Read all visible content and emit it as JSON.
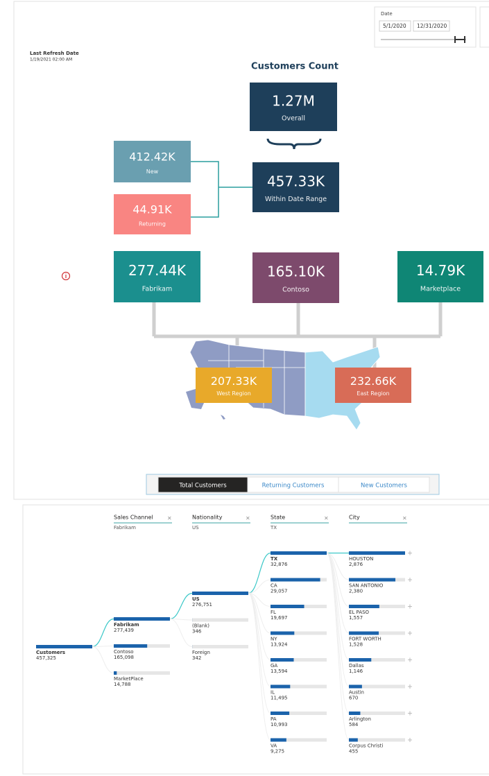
{
  "slicer": {
    "label": "Date",
    "start": "5/1/2020",
    "end": "12/31/2020"
  },
  "refresh": {
    "label": "Last Refresh Date",
    "value": "1/19/2021 02:00 AM"
  },
  "title": "Customers Count",
  "cards": [
    {
      "value": "1.27M",
      "label": "Overall",
      "color": "#1e3f5a"
    },
    {
      "value": "457.33K",
      "label": "Within Date Range",
      "color": "#1e3f5a"
    },
    {
      "value": "412.42K",
      "label": "New",
      "color": "#6a9fb0"
    },
    {
      "value": "44.91K",
      "label": "Returning",
      "color": "#f98582"
    },
    {
      "value": "277.44K",
      "label": "Fabrikam",
      "color": "#1b8f8e"
    },
    {
      "value": "165.10K",
      "label": "Contoso",
      "color": "#7d4a6c"
    },
    {
      "value": "14.79K",
      "label": "Marketplace",
      "color": "#0f8675"
    },
    {
      "value": "207.33K",
      "label": "West Region",
      "color": "#e8a92a"
    },
    {
      "value": "232.66K",
      "label": "East Region",
      "color": "#d86c57"
    }
  ],
  "tabs": [
    "Total Customers",
    "Returning Customers",
    "New Customers"
  ],
  "tree": {
    "root": {
      "name": "Customers",
      "count": {
        "value": 457325,
        "label": "457,325"
      }
    },
    "levels": [
      {
        "field": "Sales Channel",
        "filter": "Fabrikam",
        "items": [
          {
            "name": "Fabrikam",
            "count": {
              "value": 277439,
              "label": "277,439"
            }
          },
          {
            "name": "Contoso",
            "count": {
              "value": 165098,
              "label": "165,098"
            }
          },
          {
            "name": "MarketPlace",
            "count": {
              "value": 14788,
              "label": "14,788"
            }
          }
        ]
      },
      {
        "field": "Nationality",
        "filter": "US",
        "items": [
          {
            "name": "US",
            "count": {
              "value": 276751,
              "label": "276,751"
            }
          },
          {
            "name": "(Blank)",
            "count": {
              "value": 346,
              "label": "346"
            }
          },
          {
            "name": "Foreign",
            "count": {
              "value": 342,
              "label": "342"
            }
          }
        ]
      },
      {
        "field": "State",
        "filter": "TX",
        "items": [
          {
            "name": "TX",
            "count": {
              "value": 32876,
              "label": "32,876"
            }
          },
          {
            "name": "CA",
            "count": {
              "value": 29057,
              "label": "29,057"
            }
          },
          {
            "name": "FL",
            "count": {
              "value": 19697,
              "label": "19,697"
            }
          },
          {
            "name": "NY",
            "count": {
              "value": 13924,
              "label": "13,924"
            }
          },
          {
            "name": "GA",
            "count": {
              "value": 13594,
              "label": "13,594"
            }
          },
          {
            "name": "IL",
            "count": {
              "value": 11495,
              "label": "11,495"
            }
          },
          {
            "name": "PA",
            "count": {
              "value": 10993,
              "label": "10,993"
            }
          },
          {
            "name": "VA",
            "count": {
              "value": 9275,
              "label": "9,275"
            }
          }
        ]
      },
      {
        "field": "City",
        "items": [
          {
            "name": "HOUSTON",
            "count": {
              "value": 2876,
              "label": "2,876"
            }
          },
          {
            "name": "SAN ANTONIO",
            "count": {
              "value": 2380,
              "label": "2,380"
            }
          },
          {
            "name": "EL PASO",
            "count": {
              "value": 1557,
              "label": "1,557"
            }
          },
          {
            "name": "FORT WORTH",
            "count": {
              "value": 1528,
              "label": "1,528"
            }
          },
          {
            "name": "Dallas",
            "count": {
              "value": 1146,
              "label": "1,146"
            }
          },
          {
            "name": "Austin",
            "count": {
              "value": 670,
              "label": "670"
            }
          },
          {
            "name": "Arlington",
            "count": {
              "value": 584,
              "label": "584"
            }
          },
          {
            "name": "Corpus Christi",
            "count": {
              "value": 455,
              "label": "455"
            }
          }
        ]
      }
    ]
  }
}
